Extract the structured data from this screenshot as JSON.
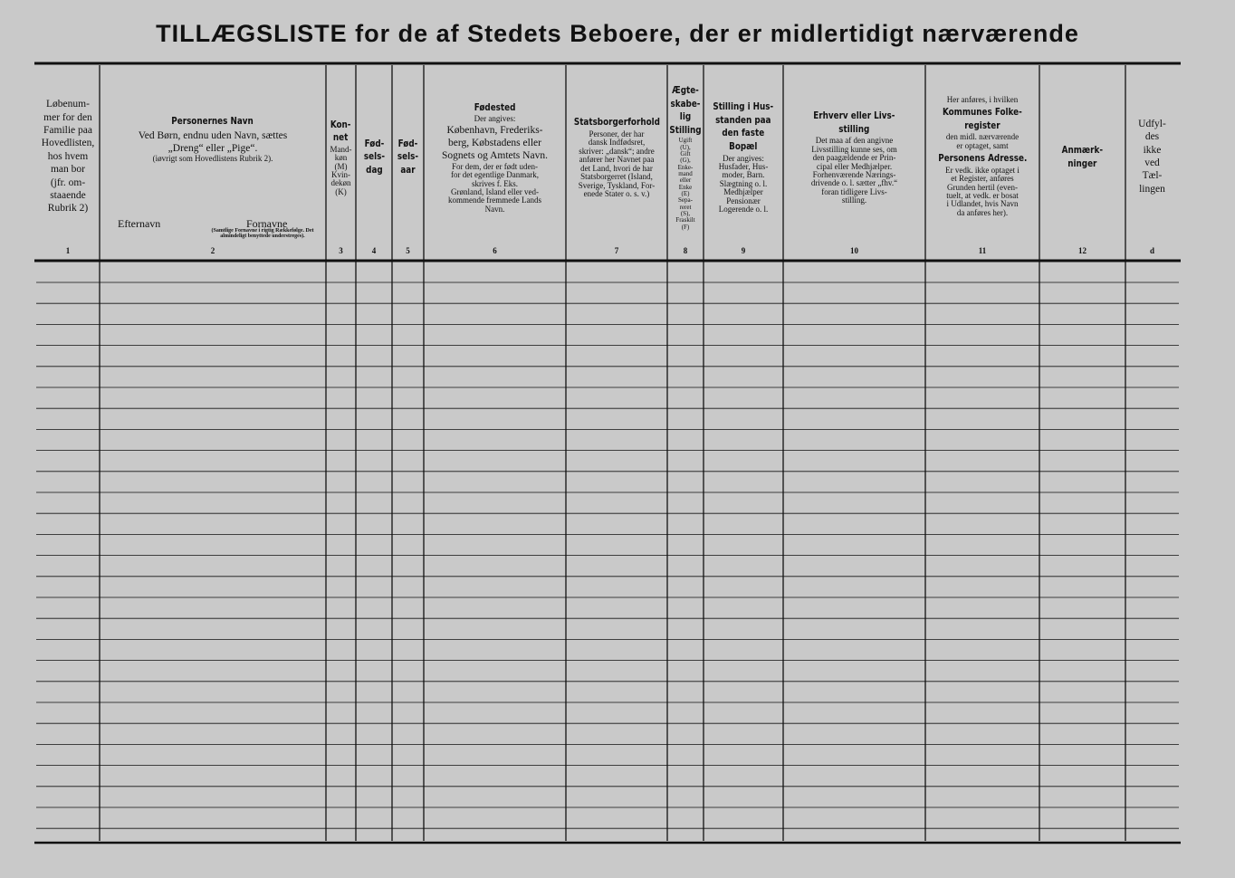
{
  "title": "TILLÆGSLISTE for de af Stedets Beboere, der er midlertidigt nærværende",
  "columns": [
    {
      "parts": [
        {
          "style": "text",
          "lines": [
            "Løbenum-",
            "mer for den",
            "Familie paa",
            "Hovedlisten,",
            "hos hvem",
            "man bor",
            "(jfr. om-",
            "staaende",
            "Rubrik 2)"
          ]
        }
      ],
      "number": "1"
    },
    {
      "parts": [
        {
          "style": "heading",
          "lines": [
            "Personernes Navn"
          ]
        },
        {
          "style": "text",
          "lines": [
            "Ved Børn, endnu uden Navn, sættes",
            "„Dreng“ eller „Pige“."
          ]
        },
        {
          "style": "small",
          "lines": [
            "(iøvrigt som Hovedlistens Rubrik 2)."
          ]
        }
      ],
      "labels": [
        "Efternavn",
        "Fornavne"
      ],
      "note": "(Samtlige Fornavne i rigtig Rækkefølge. Det almindeligt benyttede understreges).",
      "number": "2"
    },
    {
      "parts": [
        {
          "style": "heading",
          "lines": [
            "Kon-",
            "net"
          ]
        },
        {
          "style": "small",
          "lines": [
            "Mand-",
            "køn",
            "(M)",
            "Kvin-",
            "dekøn",
            "(K)"
          ]
        }
      ],
      "number": "3"
    },
    {
      "parts": [
        {
          "style": "heading",
          "lines": [
            "Fød-",
            "sels-",
            "dag"
          ]
        }
      ],
      "number": "4"
    },
    {
      "parts": [
        {
          "style": "heading",
          "lines": [
            "Fød-",
            "sels-",
            "aar"
          ]
        }
      ],
      "number": "5"
    },
    {
      "parts": [
        {
          "style": "heading",
          "lines": [
            "Fødested"
          ]
        },
        {
          "style": "small",
          "lines": [
            "Der angives:"
          ]
        },
        {
          "style": "text",
          "lines": [
            "København, Frederiks-",
            "berg, Købstadens eller",
            "Sognets og Amtets Navn."
          ]
        },
        {
          "style": "small",
          "lines": [
            "For dem, der er født uden-",
            "for det egentlige Danmark,",
            "skrives f. Eks.",
            "Grønland, Island eller ved-",
            "kommende fremmede Lands",
            "Navn."
          ]
        }
      ],
      "number": "6"
    },
    {
      "parts": [
        {
          "style": "heading",
          "lines": [
            "Statsborgerforhold"
          ]
        },
        {
          "style": "small",
          "lines": [
            "Personer, der har",
            "dansk Indfødsret,",
            "skriver: „dansk“; andre",
            "anfører her Navnet paa",
            "det Land, hvori de har",
            "Statsborgerret (Island,",
            "Sverige, Tyskland, For-",
            "enede Stater o. s. v.)"
          ]
        }
      ],
      "number": "7"
    },
    {
      "parts": [
        {
          "style": "heading",
          "lines": [
            "Ægte-",
            "skabe-",
            "lig",
            "Stilling"
          ]
        },
        {
          "style": "tiny",
          "lines": [
            "Ugift",
            "(U),",
            "Gift",
            "(G),",
            "Enke-",
            "mand",
            "eller",
            "Enke",
            "(E)",
            "Sepa-",
            "reret",
            "(S),",
            "Fraskilt",
            "(F)"
          ]
        }
      ],
      "number": "8"
    },
    {
      "parts": [
        {
          "style": "heading",
          "lines": [
            "Stilling i Hus-",
            "standen paa",
            "den faste",
            "Bopæl"
          ]
        },
        {
          "style": "small",
          "lines": [
            "Der angives:",
            "Husfader, Hus-",
            "moder, Barn.",
            "Slægtning o. l.",
            "Medhjælper",
            "Pensionær",
            "Logerende o. l."
          ]
        }
      ],
      "number": "9"
    },
    {
      "parts": [
        {
          "style": "heading",
          "lines": [
            "Erhverv eller Livs-",
            "stilling"
          ]
        },
        {
          "style": "small",
          "lines": [
            "Det maa af den angivne",
            "Livsstilling kunne ses, om",
            "den paagældende er Prin-",
            "cipal eller Medhjælper.",
            "Forhenværende Nærings-",
            "drivende o. l. sætter „fhv.“",
            "foran tidligere Livs-",
            "stilling."
          ]
        }
      ],
      "number": "10"
    },
    {
      "parts": [
        {
          "style": "small",
          "lines": [
            "Her anføres, i hvilken"
          ]
        },
        {
          "style": "heading",
          "lines": [
            "Kommunes Folke-",
            "register"
          ]
        },
        {
          "style": "small",
          "lines": [
            "den midl. nærværende",
            "er optaget, samt"
          ]
        },
        {
          "style": "heading",
          "lines": [
            "Personens Adresse."
          ]
        },
        {
          "style": "small",
          "lines": [
            "Er vedk. ikke optaget i",
            "et Register, anføres",
            "Grunden hertil (even-",
            "tuelt, at vedk. er bosat",
            "i Udlandet, hvis Navn",
            "da anføres her)."
          ]
        }
      ],
      "number": "11"
    },
    {
      "parts": [
        {
          "style": "heading",
          "lines": [
            "Anmærk-",
            "ninger"
          ]
        }
      ],
      "number": "12"
    },
    {
      "parts": [
        {
          "style": "text",
          "lines": [
            "Udfyl-",
            "des",
            "ikke",
            "ved",
            "Tæl-",
            "lingen"
          ]
        }
      ],
      "number": "d"
    }
  ]
}
